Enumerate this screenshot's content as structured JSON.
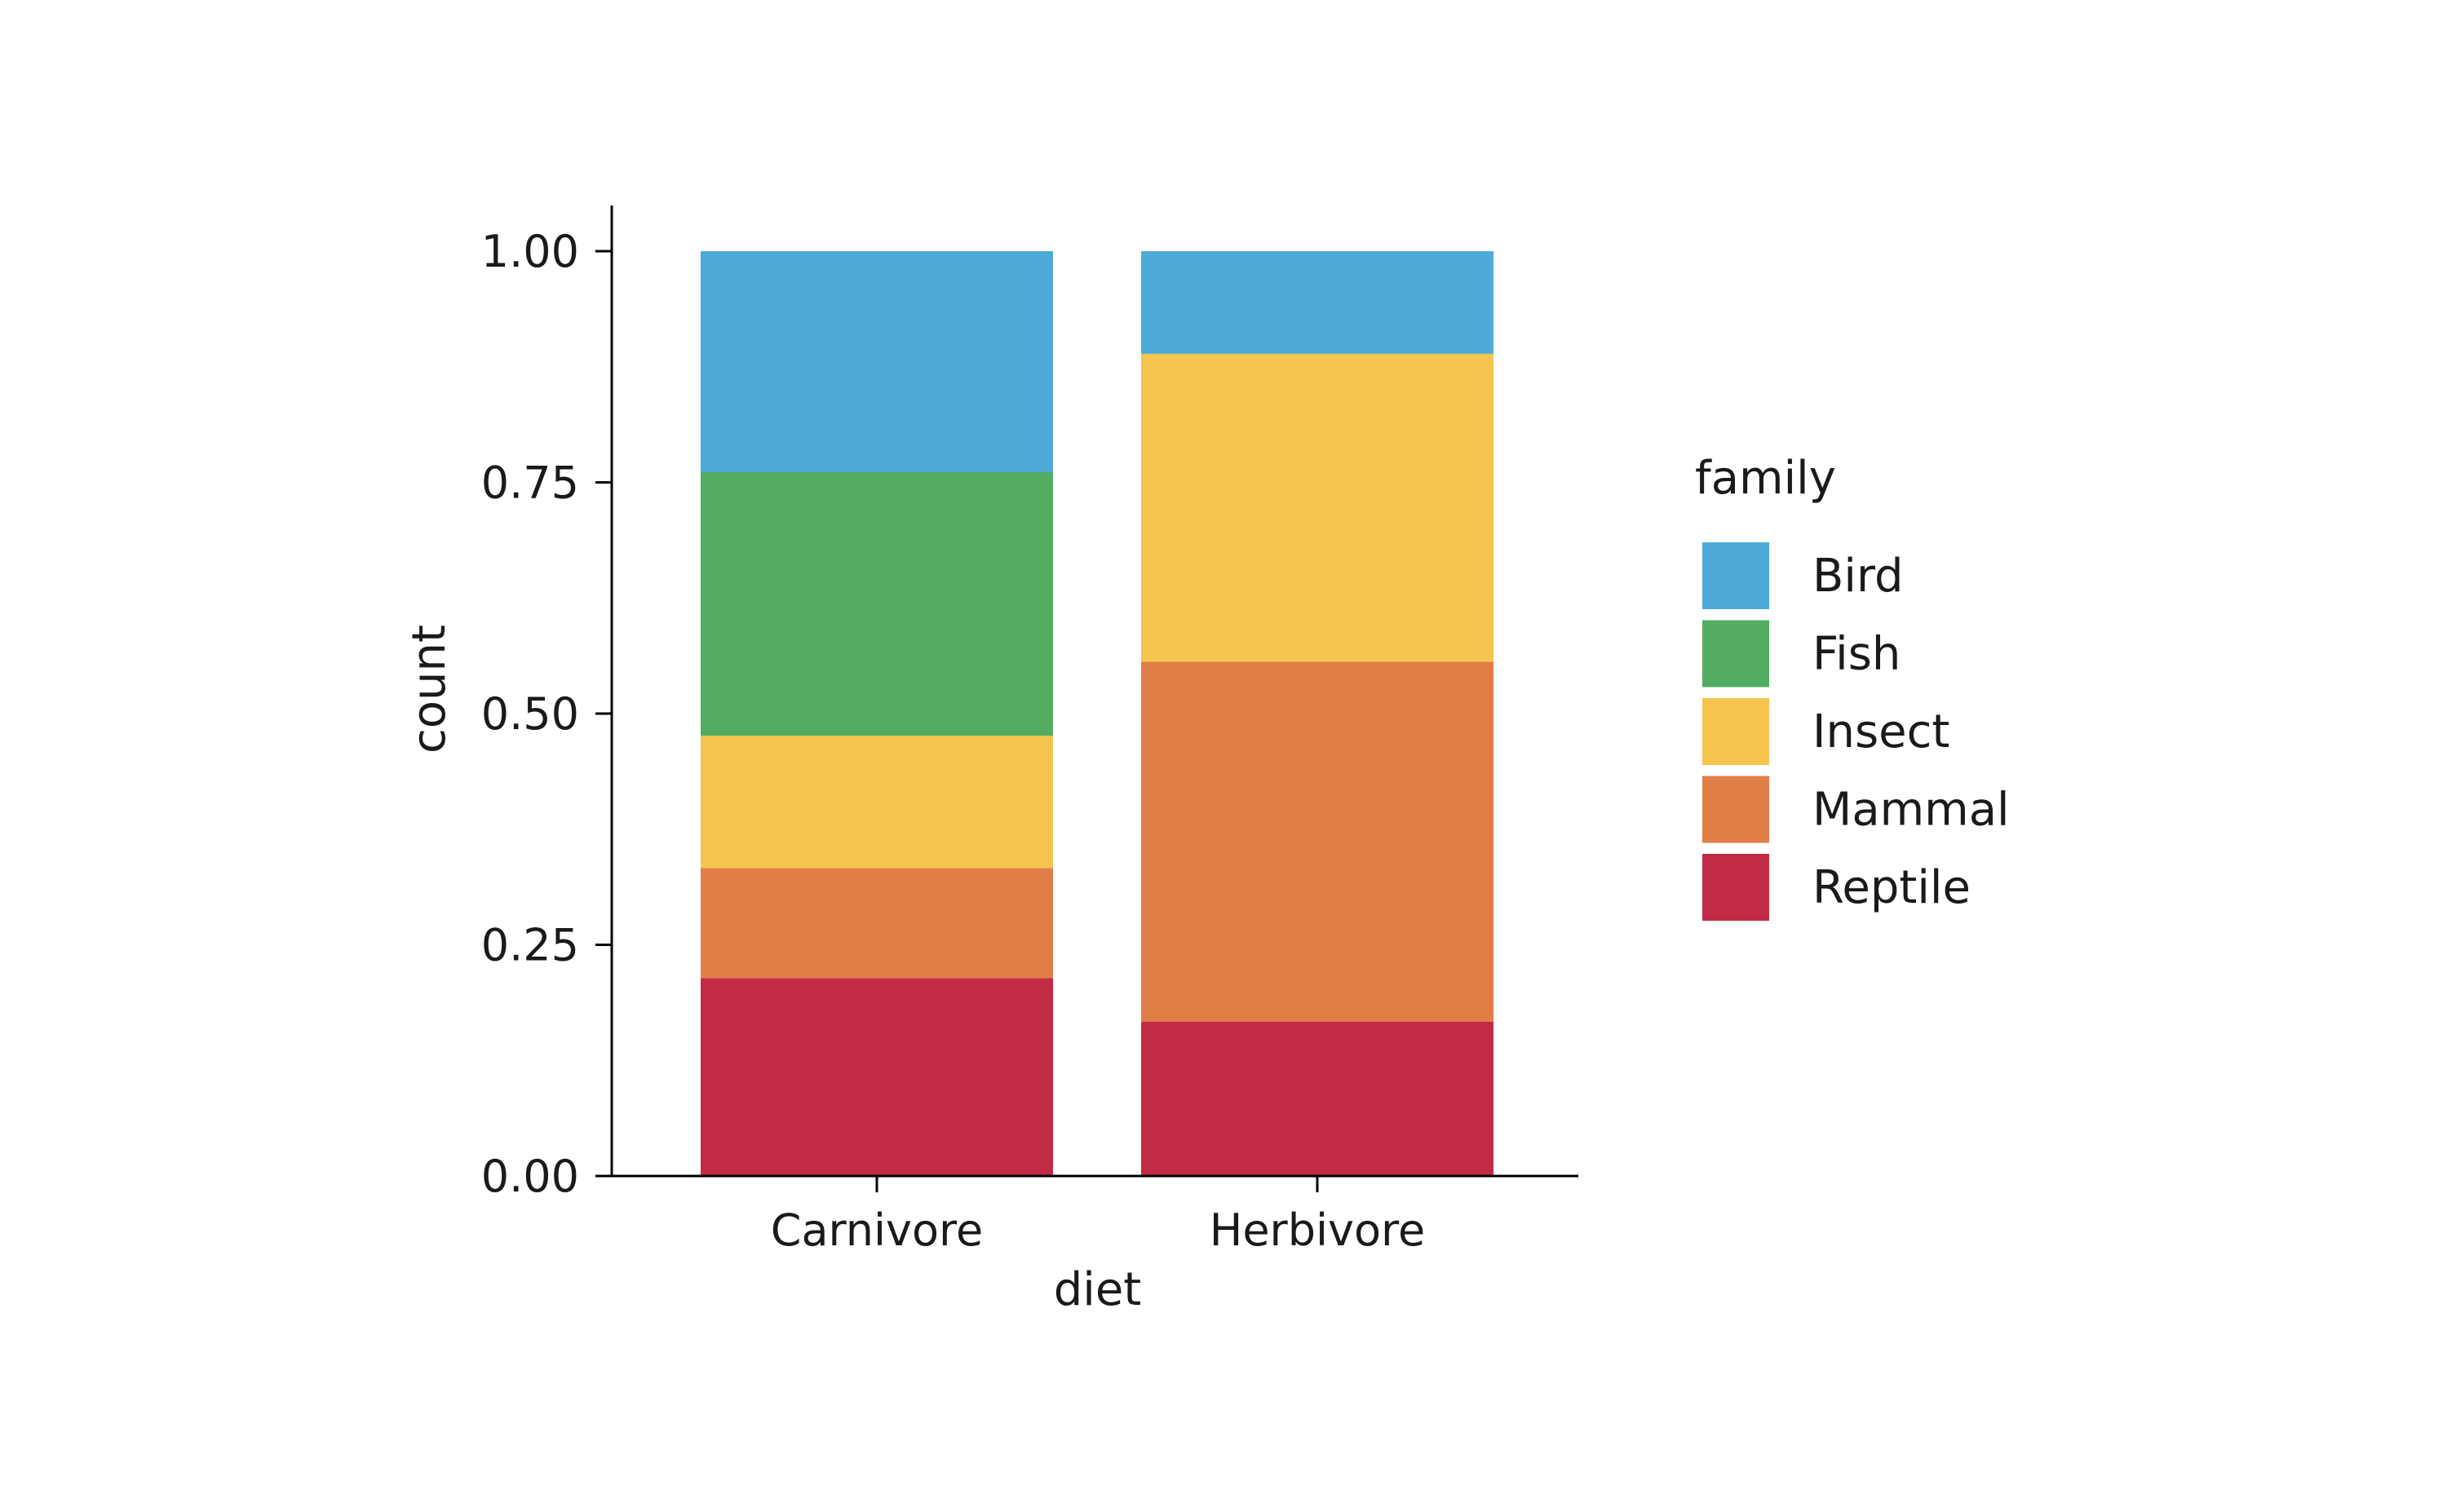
{
  "chart_data": {
    "type": "bar",
    "stacked": true,
    "normalized": true,
    "title": "",
    "xlabel": "diet",
    "ylabel": "count",
    "ylim": [
      0,
      1.05
    ],
    "yticks": [
      "0.00",
      "0.25",
      "0.50",
      "0.75",
      "1.00"
    ],
    "grid": false,
    "categories": [
      "Carnivore",
      "Herbivore"
    ],
    "series": [
      {
        "name": "Reptile",
        "color": "#c22b44",
        "values": [
          0.214,
          0.167
        ]
      },
      {
        "name": "Mammal",
        "color": "#e07e47",
        "values": [
          0.119,
          0.389
        ]
      },
      {
        "name": "Insect",
        "color": "#f5c550",
        "values": [
          0.143,
          0.333
        ]
      },
      {
        "name": "Fish",
        "color": "#52ad62",
        "values": [
          0.285,
          0.0
        ]
      },
      {
        "name": "Bird",
        "color": "#4eaad6",
        "values": [
          0.239,
          0.111
        ]
      }
    ],
    "legend": {
      "title": "family",
      "placement": "right",
      "entries": [
        "Bird",
        "Fish",
        "Insect",
        "Mammal",
        "Reptile"
      ]
    }
  }
}
